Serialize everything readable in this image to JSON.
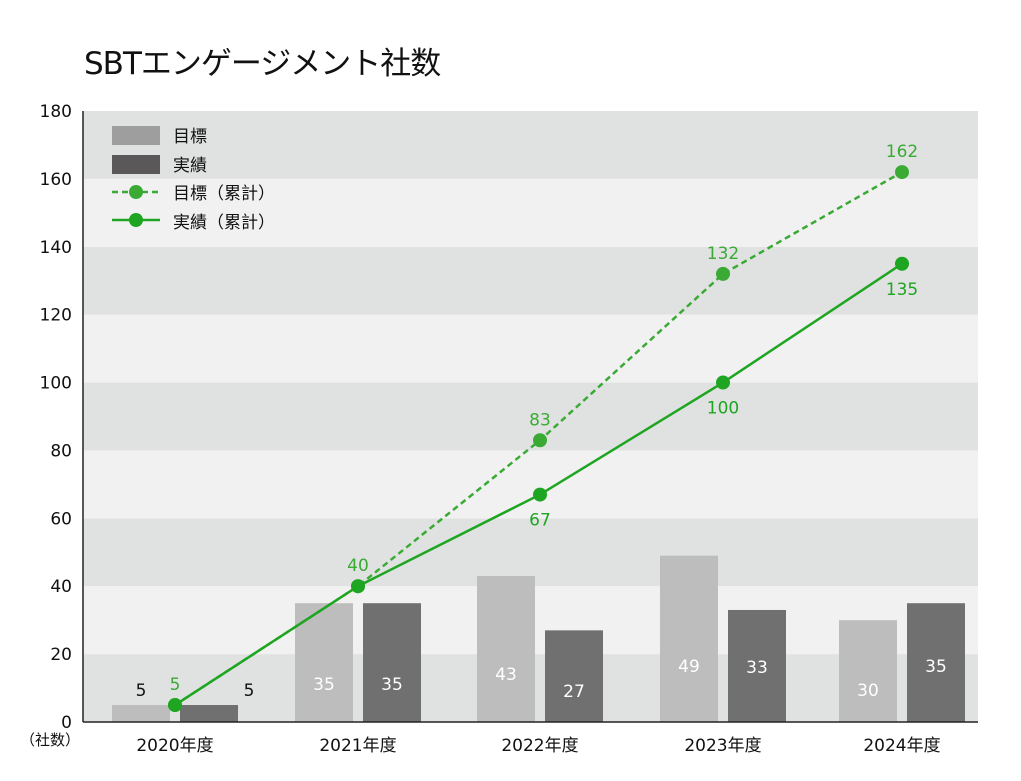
{
  "chart_data": {
    "type": "bar+line",
    "title": "SBTエンゲージメント社数",
    "ylabel": "（社数）",
    "ylim": [
      0,
      180
    ],
    "yticks": [
      0,
      20,
      40,
      60,
      80,
      100,
      120,
      140,
      160,
      180
    ],
    "categories": [
      "2020年度",
      "2021年度",
      "2022年度",
      "2023年度",
      "2024年度"
    ],
    "series": [
      {
        "name": "目標",
        "type": "bar",
        "color": "#bdbdbd",
        "legend_color": "#9e9e9e",
        "values": [
          5,
          35,
          43,
          49,
          30
        ]
      },
      {
        "name": "実績",
        "type": "bar",
        "color": "#707070",
        "legend_color": "#5a5858",
        "values": [
          5,
          35,
          27,
          33,
          35
        ]
      },
      {
        "name": "目標（累計）",
        "type": "line",
        "dashed": true,
        "color": "#3aaa35",
        "values": [
          5,
          40,
          83,
          132,
          162
        ]
      },
      {
        "name": "実績（累計）",
        "type": "line",
        "dashed": false,
        "color": "#1ea521",
        "values": [
          5,
          40,
          67,
          100,
          135
        ]
      }
    ],
    "legend_placement": "top-left",
    "grid": "alternating bands"
  }
}
